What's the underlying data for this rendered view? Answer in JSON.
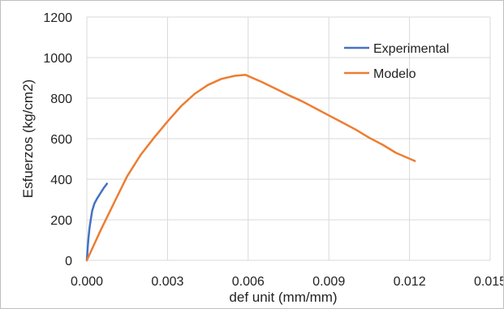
{
  "chart_data": {
    "type": "line",
    "title": "",
    "xlabel": "def unit (mm/mm)",
    "ylabel": "Esfuerzos (kg/cm2)",
    "xlim": [
      0,
      0.015
    ],
    "ylim": [
      0,
      1200
    ],
    "x_ticks": [
      "0.000",
      "0.003",
      "0.006",
      "0.009",
      "0.012",
      "0.015"
    ],
    "y_ticks": [
      "0",
      "200",
      "400",
      "600",
      "800",
      "1000",
      "1200"
    ],
    "x_tick_values": [
      0,
      0.003,
      0.006,
      0.009,
      0.012,
      0.015
    ],
    "y_tick_values": [
      0,
      200,
      400,
      600,
      800,
      1000,
      1200
    ],
    "grid": true,
    "legend_position": "top-right",
    "series": [
      {
        "name": "Experimental",
        "color": "#4472c4",
        "x": [
          0,
          3e-05,
          6e-05,
          0.0001,
          0.00015,
          0.0002,
          0.00028,
          0.00038,
          0.0005,
          0.00062,
          0.00075
        ],
        "y": [
          0,
          60,
          110,
          160,
          205,
          245,
          280,
          305,
          330,
          355,
          378
        ]
      },
      {
        "name": "Modelo",
        "color": "#ed7d31",
        "x": [
          0,
          0.0005,
          0.001,
          0.0015,
          0.002,
          0.0025,
          0.003,
          0.0035,
          0.004,
          0.0045,
          0.005,
          0.0055,
          0.0059,
          0.0065,
          0.007,
          0.0075,
          0.008,
          0.0085,
          0.009,
          0.0095,
          0.01,
          0.0105,
          0.011,
          0.0115,
          0.0122
        ],
        "y": [
          0,
          145,
          280,
          415,
          520,
          605,
          685,
          760,
          820,
          865,
          895,
          910,
          915,
          880,
          848,
          815,
          785,
          750,
          715,
          680,
          645,
          605,
          570,
          530,
          490
        ]
      }
    ]
  }
}
